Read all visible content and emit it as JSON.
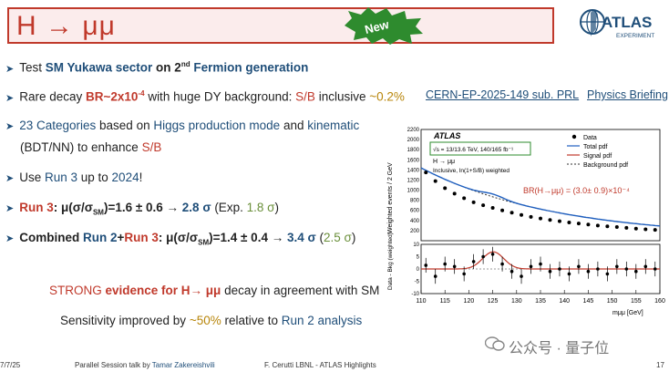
{
  "title": {
    "text": "H → μμ"
  },
  "badge": {
    "text": "New"
  },
  "logo": {
    "text": "ATLAS",
    "subtext": "EXPERIMENT"
  },
  "bullets": [
    {
      "pre": "Test ",
      "b1": "SM Yukawa sector",
      "mid": " on 2",
      "sup": "nd",
      "b2": "Fermion generation"
    },
    {
      "pre": "Rare decay ",
      "b1": "BR~2x10",
      "sup": "-4",
      "mid": " with huge DY background: ",
      "b2": "S/B",
      "post": " inclusive ",
      "b3": "~0.2%"
    },
    {
      "b1": "23 Categories",
      "mid": " based on ",
      "b2": "Higgs production mode",
      "mid2": " and ",
      "b3": "kinematic",
      "line2a": "(BDT/NN)",
      "line2b": " to enhance ",
      "line2c": "S/B"
    },
    {
      "pre": "Use ",
      "b1": "Run 3",
      "mid": " up to ",
      "b2": "2024",
      "post": "!"
    },
    {
      "b1": "Run 3",
      "mid": ": μ(σ/σ",
      "sub": "SM",
      "mid2": ")=1.6 ± 0.6 → ",
      "b2": "2.8 σ",
      "post": " (Exp. ",
      "b3": "1.8 σ",
      "post2": ")"
    },
    {
      "b1": "Combined ",
      "b2": "Run 2",
      "plus": "+",
      "b3": "Run 3",
      "mid": ": μ(σ/σ",
      "sub": "SM",
      "mid2": ")=1.4 ± 0.4 → ",
      "b4": "3.4 σ",
      "post": " (",
      "b5": "2.5 σ",
      "post2": ")"
    }
  ],
  "links": {
    "cern": "CERN-EP-2025-149 sub. PRL",
    "briefing": "Physics Briefing"
  },
  "strong": {
    "a": "STRONG ",
    "b": "evidence for H→ μμ",
    "c": " decay in agreement with SM"
  },
  "sens": {
    "a": "Sensitivity improved by ",
    "b": "~50%",
    "c": " relative to ",
    "d": "Run 2 analysis"
  },
  "footer": {
    "date": "7/7/25",
    "talk": "Parallel Session talk by ",
    "speaker": "Tamar Zakereishvili",
    "author": "F. Cerutti LBNL - ATLAS Highlights",
    "page": "17"
  },
  "watermark": {
    "text": "公众号 · 量子位"
  },
  "chart_data": {
    "type": "scatter",
    "title": "",
    "atlas_label": "ATLAS",
    "energy_label": "√s = 13/13.6 TeV, 140/165 fb⁻¹",
    "process_label": "H → μμ",
    "selection_label": "Inclusive, ln(1+S/B) weighted",
    "br_label": "BR(H→μμ) = (3.0± 0.9)×10⁻⁴",
    "xlabel": "mμμ [GeV]",
    "ylabel_top": "Weighted events / 2 GeV",
    "ylabel_bottom": "Data - Bkg (weighted)",
    "xlim": [
      110,
      160
    ],
    "ylim_top": [
      0,
      2200
    ],
    "ylim_bottom": [
      -10,
      10
    ],
    "x_ticks": [
      "110",
      "115",
      "120",
      "125",
      "130",
      "135",
      "140",
      "145",
      "150",
      "155",
      "160"
    ],
    "y_ticks_top": [
      "200",
      "400",
      "600",
      "800",
      "1000",
      "1200",
      "1400",
      "1600",
      "1800",
      "2000",
      "2200"
    ],
    "y_ticks_bottom": [
      "-10",
      "-5",
      "0",
      "5",
      "10"
    ],
    "legend": [
      "Data",
      "Total pdf",
      "Signal pdf",
      "Background pdf"
    ],
    "x": [
      111,
      113,
      115,
      117,
      119,
      121,
      123,
      125,
      127,
      129,
      131,
      133,
      135,
      137,
      139,
      141,
      143,
      145,
      147,
      149,
      151,
      153,
      155,
      157,
      159
    ],
    "series": [
      {
        "name": "Data",
        "values": [
          1350,
          1180,
          1040,
          930,
          840,
          760,
          700,
          650,
          600,
          555,
          510,
          470,
          440,
          410,
          385,
          360,
          340,
          320,
          300,
          285,
          270,
          255,
          240,
          225,
          215
        ]
      },
      {
        "name": "Data - Bkg",
        "values": [
          1.5,
          -3,
          2,
          1,
          -2,
          3,
          5,
          6,
          2,
          -1,
          -3,
          1,
          2,
          -1,
          0,
          -2,
          1,
          -1,
          0,
          -2,
          1,
          0,
          -1,
          1,
          0
        ]
      }
    ],
    "colors": {
      "total": "#1f5fbf",
      "signal": "#c0392b",
      "background": "#333333",
      "data": "#000000"
    }
  }
}
